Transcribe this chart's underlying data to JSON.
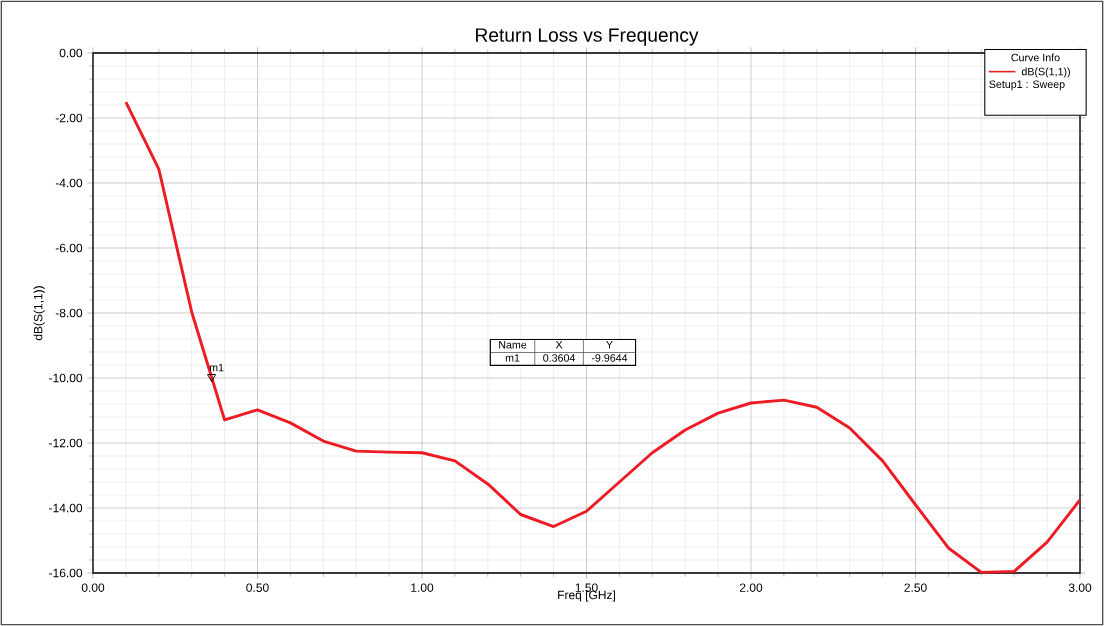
{
  "chart_data": {
    "type": "line",
    "title": "Return Loss vs Frequency",
    "xlabel": "Freq [GHz]",
    "ylabel": "dB(S(1,1))",
    "legend_title": "Curve Info",
    "xlim": [
      0,
      3
    ],
    "ylim": [
      -16,
      0
    ],
    "xticks": [
      {
        "value": 0,
        "label": "0.00"
      },
      {
        "value": 0.5,
        "label": "0.50"
      },
      {
        "value": 1,
        "label": "1.00"
      },
      {
        "value": 1.5,
        "label": "1.50"
      },
      {
        "value": 2,
        "label": "2.00"
      },
      {
        "value": 2.5,
        "label": "2.50"
      },
      {
        "value": 3,
        "label": "3.00"
      }
    ],
    "yticks": [
      {
        "value": -16,
        "label": "-16.00"
      },
      {
        "value": -14,
        "label": "-14.00"
      },
      {
        "value": -12,
        "label": "-12.00"
      },
      {
        "value": -10,
        "label": "-10.00"
      },
      {
        "value": -8,
        "label": "-8.00"
      },
      {
        "value": -6,
        "label": "-6.00"
      },
      {
        "value": -4,
        "label": "-4.00"
      },
      {
        "value": -2,
        "label": "-2.00"
      },
      {
        "value": 0,
        "label": "0.00"
      }
    ],
    "grid": true,
    "legend": "top right",
    "line_style": "solid",
    "series": [
      {
        "name": "dB(S(1,1))",
        "color": "#ed1c24",
        "x": [
          0.1,
          0.2,
          0.3,
          0.4,
          0.5,
          0.6,
          0.7,
          0.8,
          0.9,
          1.0,
          1.1,
          1.2,
          1.3,
          1.4,
          1.5,
          1.6,
          1.7,
          1.8,
          1.9,
          2.0,
          2.1,
          2.2,
          2.3,
          2.4,
          2.5,
          2.6,
          2.7,
          2.8,
          2.9,
          3.0
        ],
        "values": [
          -1.51,
          -3.57,
          -7.97,
          -11.29,
          -10.98,
          -11.38,
          -11.94,
          -12.25,
          -12.28,
          -12.3,
          -12.55,
          -13.26,
          -14.2,
          -14.57,
          -14.1,
          -13.2,
          -12.3,
          -11.6,
          -11.08,
          -10.77,
          -10.68,
          -10.9,
          -11.54,
          -12.55,
          -13.9,
          -15.23,
          -15.98,
          -15.95,
          -15.05,
          -13.75
        ]
      },
      {
        "name": "m1",
        "type": "scatter",
        "marker": "triangle",
        "color": "#000000",
        "x": [
          0.3604
        ],
        "values": [
          -9.9644
        ]
      }
    ],
    "annotations": [
      "Setup1 : Sweep",
      "Name",
      "X",
      "Y",
      "m1",
      "0.3604",
      "-9.9644"
    ]
  }
}
